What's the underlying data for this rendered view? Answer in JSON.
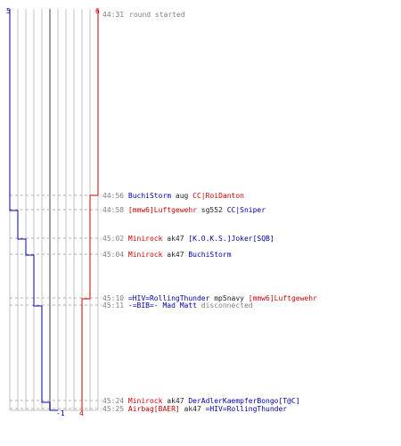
{
  "colors": {
    "blue_team": "#0000aa",
    "red_team": "#cc0000",
    "time": "#808080",
    "grid": "#c0c0c0",
    "center": "#808080",
    "dash": "#b0b0b0",
    "plain": "#222222"
  },
  "header": {
    "blue_start_score": "5",
    "red_start_score": "6",
    "time": "44:31",
    "message": "round started"
  },
  "footer": {
    "blue_final_score": "-1",
    "red_final_score": "4"
  },
  "events": [
    {
      "time": "44:56",
      "parts": [
        {
          "text": "BuchiStorm",
          "team": "blue"
        },
        {
          "text": " aug ",
          "team": "plain"
        },
        {
          "text": "CC|RoiDanton",
          "team": "red"
        }
      ]
    },
    {
      "time": "44:58",
      "parts": [
        {
          "text": "[mmw6]Luftgewehr",
          "team": "red"
        },
        {
          "text": " sg552 ",
          "team": "plain"
        },
        {
          "text": "CC|Sniper",
          "team": "blue"
        }
      ]
    },
    {
      "time": "45:02",
      "parts": [
        {
          "text": "Minirock",
          "team": "red"
        },
        {
          "text": " ak47 ",
          "team": "plain"
        },
        {
          "text": "[K.O.K.S.]Joker[SQB]",
          "team": "blue"
        }
      ]
    },
    {
      "time": "45:04",
      "parts": [
        {
          "text": "Minirock",
          "team": "red"
        },
        {
          "text": " ak47 ",
          "team": "plain"
        },
        {
          "text": "BuchiStorm",
          "team": "blue"
        }
      ]
    },
    {
      "time": "45:10",
      "parts": [
        {
          "text": "=HIV=RollingThunder",
          "team": "blue"
        },
        {
          "text": " mp5navy ",
          "team": "plain"
        },
        {
          "text": "[mmw6]Luftgewehr",
          "team": "red"
        }
      ]
    },
    {
      "time": "45:11",
      "parts": [
        {
          "text": "-=BIB=- Mad Matt",
          "team": "blue"
        },
        {
          "text": " disconnected",
          "team": "time"
        }
      ]
    },
    {
      "time": "45:24",
      "parts": [
        {
          "text": "Minirock",
          "team": "red"
        },
        {
          "text": " ak47 ",
          "team": "plain"
        },
        {
          "text": "DerAdlerKaempferBongo[T@C]",
          "team": "blue"
        }
      ]
    },
    {
      "time": "45:25",
      "parts": [
        {
          "text": "Airbag[BAER]",
          "team": "red"
        },
        {
          "text": " ak47 ",
          "team": "plain"
        },
        {
          "text": "=HIV=RollingThunder",
          "team": "blue"
        }
      ]
    }
  ]
}
